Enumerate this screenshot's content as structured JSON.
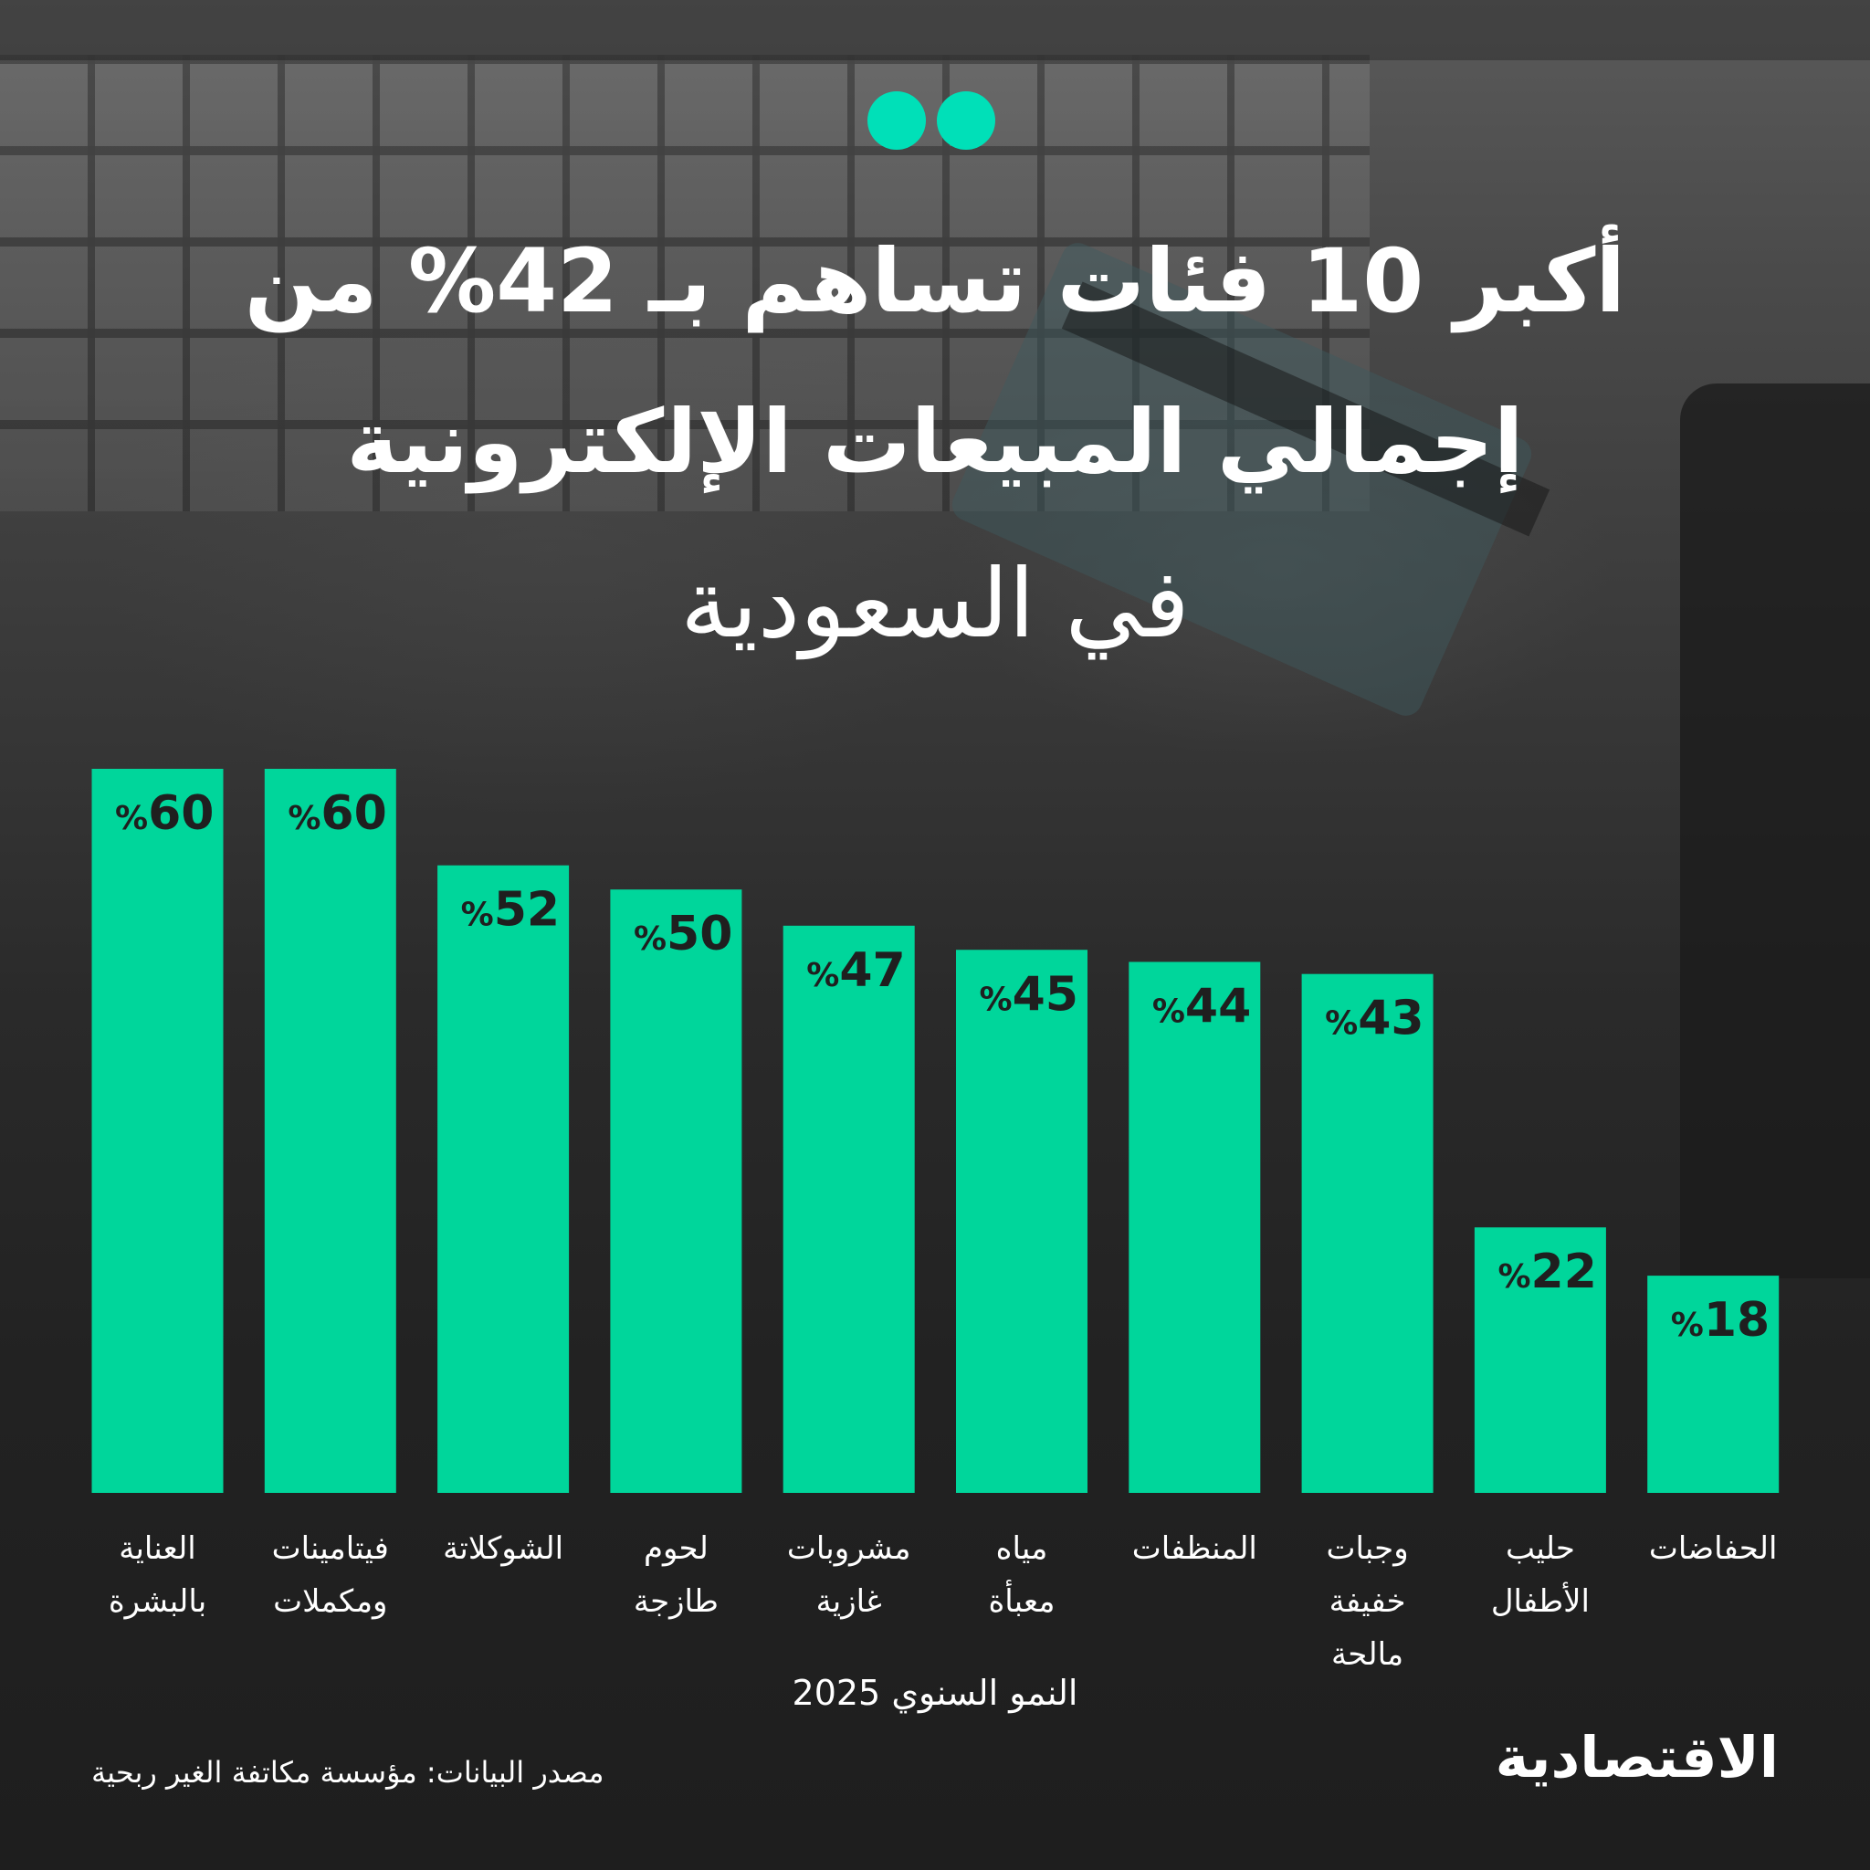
{
  "title": {
    "line1": "أكبر 10 فئات تساهم بـ 42% من",
    "line2": "إجمالي المبيعات الإلكترونية",
    "line3": "في السعودية"
  },
  "colors": {
    "accent": "#00d69b",
    "quote": "#00e0b8",
    "background": "#262626"
  },
  "source": "مصدر البيانات: مؤسسة مكاتفة الغير ربحية",
  "logo": "الاقتصادية",
  "chart_data": {
    "type": "bar",
    "xlabel": "النمو السنوي 2025",
    "ylabel": "",
    "ylim": [
      0,
      60
    ],
    "grid": false,
    "value_suffix": "%",
    "categories": [
      [
        "العناية",
        "بالبشرة"
      ],
      [
        "فيتامينات",
        "ومكملات"
      ],
      [
        "الشوكلاتة"
      ],
      [
        "لحوم",
        "طازجة"
      ],
      [
        "مشروبات",
        "غازية"
      ],
      [
        "مياه",
        "معبأة"
      ],
      [
        "المنظفات"
      ],
      [
        "وجبات",
        "خفيفة",
        "مالحة"
      ],
      [
        "حليب",
        "الأطفال"
      ],
      [
        "الحفاضات"
      ]
    ],
    "values": [
      60,
      60,
      52,
      50,
      47,
      45,
      44,
      43,
      22,
      18
    ]
  }
}
